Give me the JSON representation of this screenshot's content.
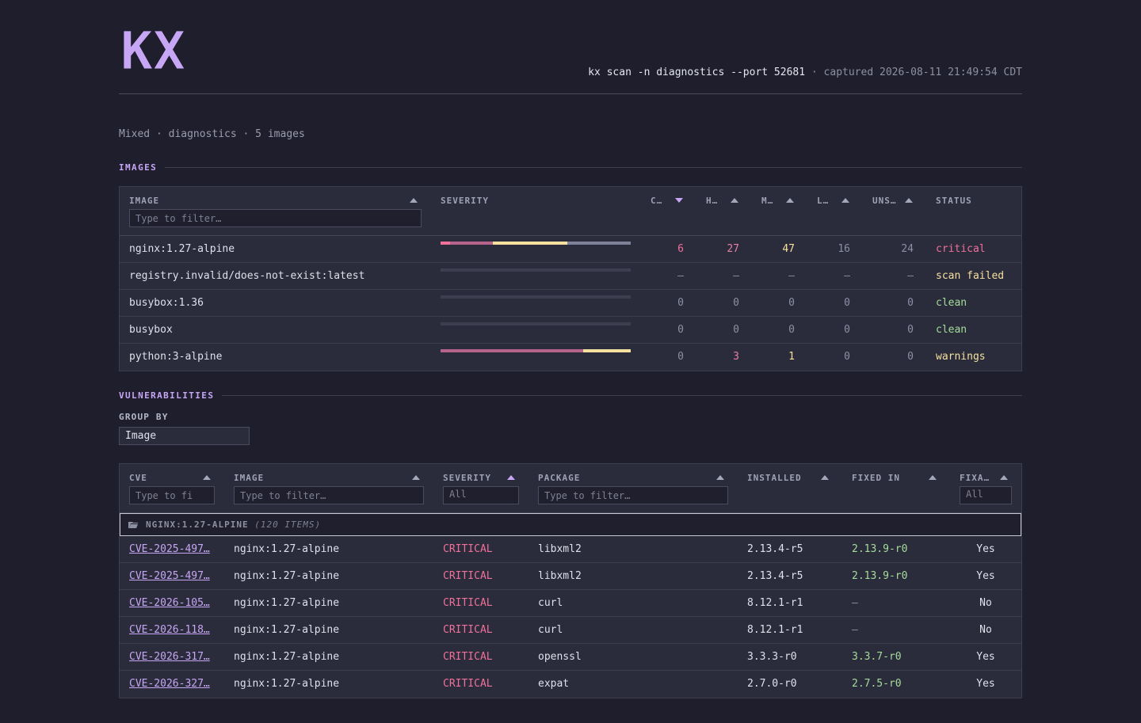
{
  "header": {
    "logo_text": "KX",
    "command": "kx scan -n diagnostics --port 52681",
    "captured": "captured 2026-08-11 21:49:54 CDT"
  },
  "subtitle": "Mixed · diagnostics · 5 images",
  "images_section": {
    "title": "IMAGES",
    "columns": {
      "image": "IMAGE",
      "severity": "SEVERITY",
      "critical": "C…",
      "high": "H…",
      "medium": "M…",
      "low": "L…",
      "unspecified": "UNS…",
      "status": "STATUS"
    },
    "filter_placeholder": "Type to filter…",
    "rows": [
      {
        "image": "nginx:1.27-alpine",
        "critical": "6",
        "high": "27",
        "medium": "47",
        "low": "16",
        "unspecified": "24",
        "status": "critical",
        "bar": [
          6,
          27,
          47,
          40
        ]
      },
      {
        "image": "registry.invalid/does-not-exist:latest",
        "critical": "–",
        "high": "–",
        "medium": "–",
        "low": "–",
        "unspecified": "–",
        "status": "scan failed",
        "bar": []
      },
      {
        "image": "busybox:1.36",
        "critical": "0",
        "high": "0",
        "medium": "0",
        "low": "0",
        "unspecified": "0",
        "status": "clean",
        "bar": []
      },
      {
        "image": "busybox",
        "critical": "0",
        "high": "0",
        "medium": "0",
        "low": "0",
        "unspecified": "0",
        "status": "clean",
        "bar": []
      },
      {
        "image": "python:3-alpine",
        "critical": "0",
        "high": "3",
        "medium": "1",
        "low": "0",
        "unspecified": "0",
        "status": "warnings",
        "bar": [
          0,
          3,
          1,
          0
        ]
      }
    ]
  },
  "vulns_section": {
    "title": "VULNERABILITIES",
    "group_by_label": "GROUP BY",
    "group_by_value": "Image",
    "columns": {
      "cve": "CVE",
      "image": "IMAGE",
      "severity": "SEVERITY",
      "package": "PACKAGE",
      "installed": "INSTALLED",
      "fixed_in": "FIXED IN",
      "fixable": "FIXA…"
    },
    "filters": {
      "cve_placeholder": "Type to fi",
      "image_placeholder": "Type to filter…",
      "severity_value": "All",
      "package_placeholder": "Type to filter…",
      "fixable_value": "All"
    },
    "group": {
      "name": "NGINX:1.27-ALPINE",
      "count": "(120 ITEMS)"
    },
    "rows": [
      {
        "cve": "CVE-2025-497…",
        "image": "nginx:1.27-alpine",
        "severity": "CRITICAL",
        "package": "libxml2",
        "installed": "2.13.4-r5",
        "fixed_in": "2.13.9-r0",
        "fixable": "Yes"
      },
      {
        "cve": "CVE-2025-497…",
        "image": "nginx:1.27-alpine",
        "severity": "CRITICAL",
        "package": "libxml2",
        "installed": "2.13.4-r5",
        "fixed_in": "2.13.9-r0",
        "fixable": "Yes"
      },
      {
        "cve": "CVE-2026-105…",
        "image": "nginx:1.27-alpine",
        "severity": "CRITICAL",
        "package": "curl",
        "installed": "8.12.1-r1",
        "fixed_in": "–",
        "fixable": "No"
      },
      {
        "cve": "CVE-2026-118…",
        "image": "nginx:1.27-alpine",
        "severity": "CRITICAL",
        "package": "curl",
        "installed": "8.12.1-r1",
        "fixed_in": "–",
        "fixable": "No"
      },
      {
        "cve": "CVE-2026-317…",
        "image": "nginx:1.27-alpine",
        "severity": "CRITICAL",
        "package": "openssl",
        "installed": "3.3.3-r0",
        "fixed_in": "3.3.7-r0",
        "fixable": "Yes"
      },
      {
        "cve": "CVE-2026-327…",
        "image": "nginx:1.27-alpine",
        "severity": "CRITICAL",
        "package": "expat",
        "installed": "2.7.0-r0",
        "fixed_in": "2.7.5-r0",
        "fixable": "Yes"
      }
    ]
  },
  "colors": {
    "accent": "#c7a6f5",
    "critical": "#f0719a",
    "high": "#b5638a",
    "medium": "#f6e0a0",
    "low": "#7d8199",
    "clean": "#a6dd9a"
  }
}
